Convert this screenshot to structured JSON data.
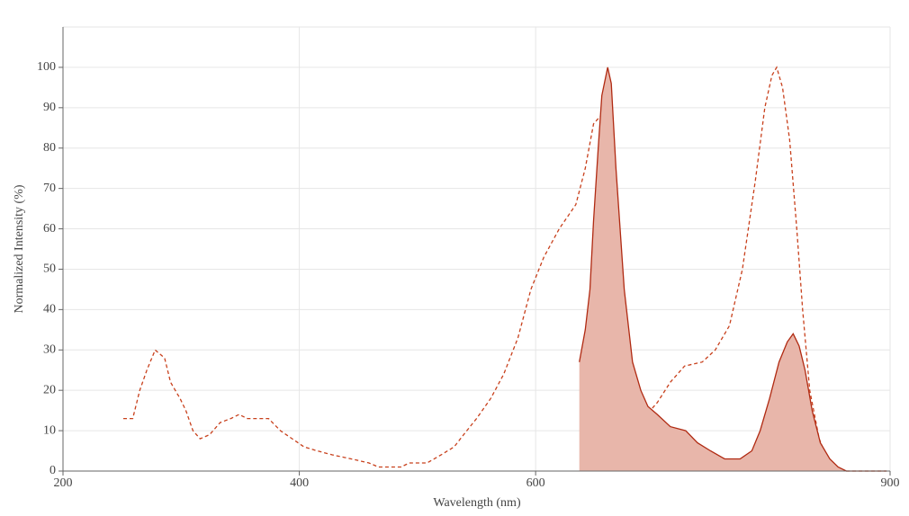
{
  "chart_data": {
    "type": "line",
    "x_label": "Wavelength (nm)",
    "y_label": "Normalized Intensity (%)",
    "xlim": [
      200,
      900
    ],
    "ylim": [
      0,
      110
    ],
    "xticks": [
      200,
      400,
      600,
      900
    ],
    "yticks": [
      0,
      10,
      20,
      30,
      40,
      50,
      60,
      70,
      80,
      90,
      100
    ],
    "grid": true,
    "series": [
      {
        "color": "#c8401c",
        "style": "dashed",
        "x": [
          251,
          259,
          265,
          271,
          278,
          286,
          291,
          299,
          304,
          310,
          316,
          324,
          333,
          342,
          349,
          356,
          374,
          384,
          394,
          404,
          415,
          428,
          444,
          459,
          467,
          486,
          493,
          508,
          520,
          531,
          539,
          550,
          562,
          573,
          585,
          596,
          607,
          620,
          634,
          642,
          649,
          655,
          659,
          665,
          671,
          678,
          685,
          691,
          703,
          714,
          726,
          741,
          752,
          764,
          775,
          786,
          794,
          800,
          804,
          809,
          815,
          821,
          826,
          832,
          840,
          847,
          855,
          863,
          897
        ],
        "values": [
          13,
          13,
          20,
          25,
          30,
          28,
          22,
          18,
          15,
          10,
          8,
          9,
          12,
          13,
          14,
          13,
          13,
          10,
          8,
          6,
          5,
          4,
          3,
          2,
          1,
          1,
          2,
          2,
          4,
          6,
          9,
          13,
          18,
          24,
          33,
          45,
          53,
          60,
          66,
          75,
          86,
          88,
          84,
          60,
          30,
          16,
          12,
          13,
          17,
          22,
          26,
          27,
          30,
          36,
          50,
          72,
          90,
          98,
          100,
          95,
          82,
          60,
          40,
          20,
          8,
          3,
          1,
          0,
          0
        ]
      },
      {
        "color": "#b02a12",
        "style": "solid",
        "fill": "#e8b6aa",
        "x": [
          637,
          642,
          646,
          649,
          653,
          656,
          661,
          664,
          668,
          675,
          682,
          689,
          695,
          703,
          714,
          727,
          737,
          748,
          760,
          773,
          783,
          790,
          798,
          806,
          813,
          818,
          823,
          828,
          834,
          841,
          849,
          856,
          863,
          897
        ],
        "values": [
          27,
          35,
          45,
          62,
          80,
          93,
          100,
          96,
          75,
          45,
          27,
          20,
          16,
          14,
          11,
          10,
          7,
          5,
          3,
          3,
          5,
          10,
          18,
          27,
          32,
          34,
          31,
          25,
          15,
          7,
          3,
          1,
          0,
          0
        ]
      }
    ]
  }
}
